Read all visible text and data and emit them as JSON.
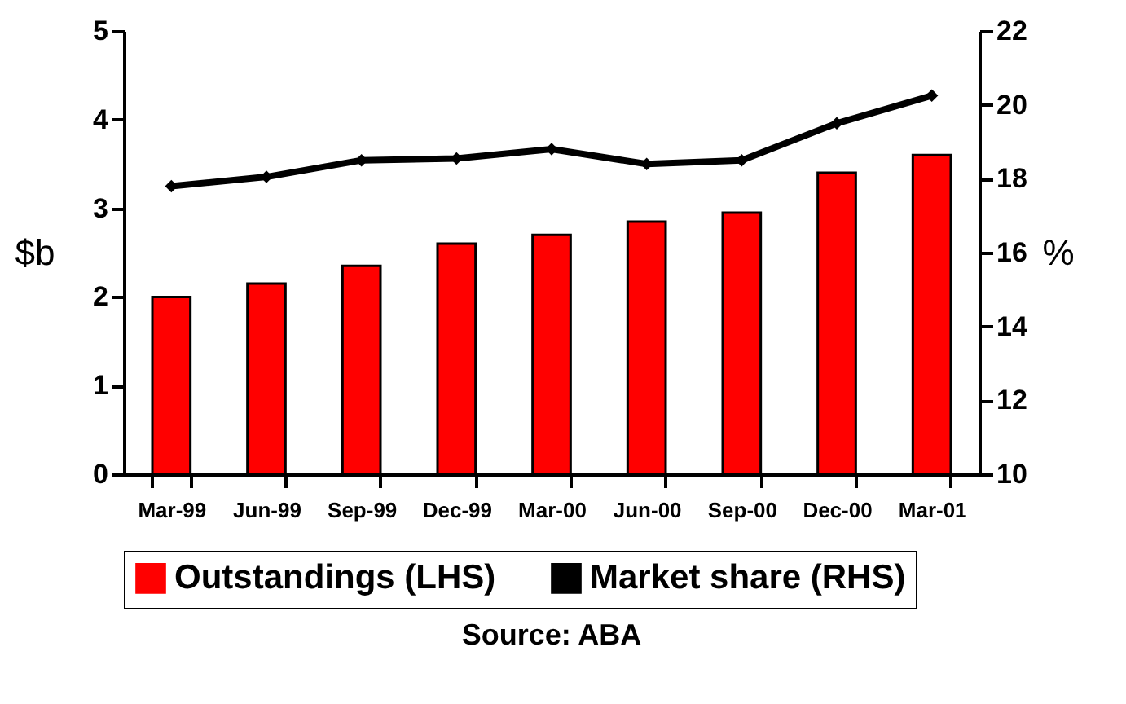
{
  "chart_data": {
    "type": "bar",
    "categories": [
      "Mar-99",
      "Jun-99",
      "Sep-99",
      "Dec-99",
      "Mar-00",
      "Jun-00",
      "Sep-00",
      "Dec-00",
      "Mar-01"
    ],
    "series": [
      {
        "name": "Outstandings (LHS)",
        "color": "#ff0000",
        "values": [
          2.0,
          2.15,
          2.35,
          2.6,
          2.7,
          2.85,
          2.95,
          3.4,
          3.6
        ]
      },
      {
        "name": "Market share (RHS)",
        "type": "line",
        "axis": "y2",
        "color": "#000000",
        "values": [
          17.8,
          18.05,
          18.5,
          18.55,
          18.8,
          18.4,
          18.5,
          19.5,
          20.25
        ]
      }
    ],
    "ylabel": "$b",
    "y2label": "%",
    "ylim": [
      0,
      5
    ],
    "yticks": [
      0,
      1,
      2,
      3,
      4,
      5
    ],
    "y2lim": [
      10,
      22
    ],
    "y2ticks": [
      10,
      12,
      14,
      16,
      18,
      20,
      22
    ],
    "marker": "diamond",
    "legend": "bottom",
    "grid": false,
    "annotations": [
      "Source: ABA"
    ]
  }
}
